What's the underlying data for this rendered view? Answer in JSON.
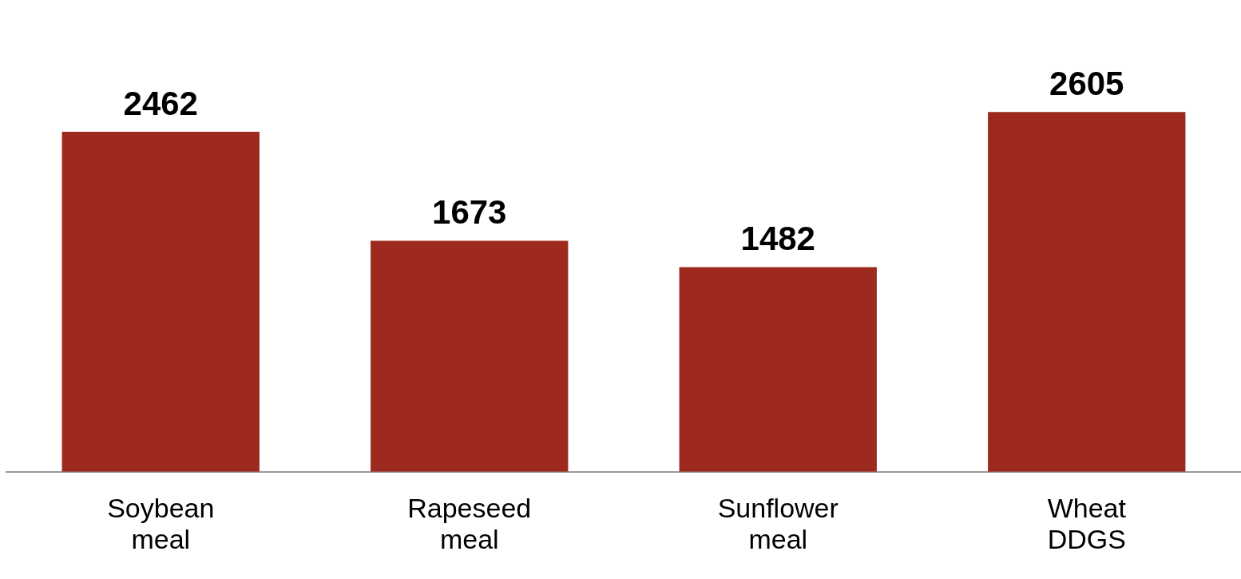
{
  "chart_data": {
    "type": "bar",
    "categories": [
      "Soybean meal",
      "Rapeseed meal",
      "Sunflower meal",
      "Wheat DDGS"
    ],
    "values": [
      2462,
      1673,
      1482,
      2605
    ],
    "color": "#9e2a1f",
    "data_labels": true,
    "grid": false,
    "legend": false
  }
}
